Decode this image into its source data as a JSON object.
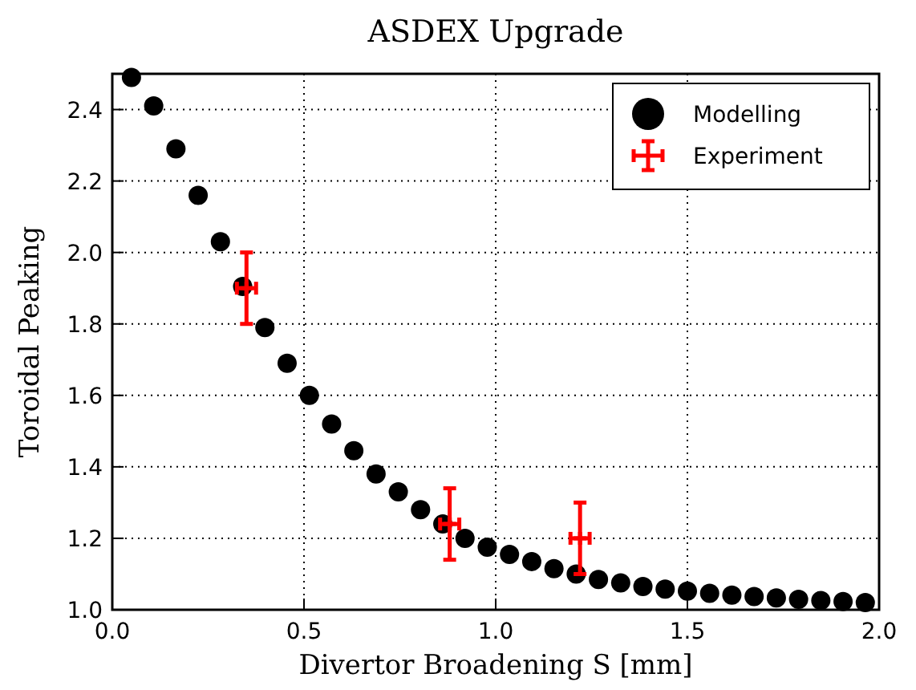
{
  "chart_data": {
    "type": "scatter",
    "title": "ASDEX Upgrade",
    "xlabel": "Divertor Broadening S [mm]",
    "ylabel": "Toroidal Peaking",
    "xlim": [
      0,
      2
    ],
    "ylim": [
      1,
      2.5
    ],
    "xticks": [
      {
        "value": 0,
        "label": "0.0"
      },
      0.5,
      {
        "value": 1,
        "label": "1.0"
      },
      1.5,
      {
        "value": 2,
        "label": "2.0"
      }
    ],
    "yticks": [
      {
        "value": 1,
        "label": "1.0"
      },
      1.2,
      1.4,
      1.6,
      1.8,
      {
        "value": 2,
        "label": "2.0"
      },
      2.2,
      2.4
    ],
    "grid": true,
    "legend": "top right",
    "series": [
      {
        "name": "Modelling",
        "color": "#000000",
        "marker": "circle",
        "x": [
          0.05,
          0.108,
          0.166,
          0.224,
          0.282,
          0.34,
          0.398,
          0.456,
          0.514,
          0.572,
          0.63,
          0.688,
          0.746,
          0.804,
          0.862,
          0.92,
          0.978,
          1.036,
          1.094,
          1.152,
          1.21,
          1.268,
          1.326,
          1.384,
          1.442,
          1.5,
          1.558,
          1.616,
          1.674,
          1.732,
          1.79,
          1.848,
          1.906,
          1.964
        ],
        "values": [
          2.49,
          2.41,
          2.29,
          2.16,
          2.03,
          1.905,
          1.79,
          1.69,
          1.6,
          1.52,
          1.445,
          1.38,
          1.33,
          1.28,
          1.24,
          1.2,
          1.175,
          1.155,
          1.135,
          1.115,
          1.1,
          1.085,
          1.075,
          1.065,
          1.058,
          1.052,
          1.046,
          1.041,
          1.037,
          1.033,
          1.029,
          1.026,
          1.023,
          1.02
        ]
      },
      {
        "name": "Experiment",
        "color": "#ff0000",
        "marker": "cross",
        "x": [
          0.35,
          0.88,
          1.22
        ],
        "values": [
          1.9,
          1.24,
          1.2
        ],
        "errors": [
          0.1,
          0.1,
          0.1
        ],
        "xerrors": [
          0.025,
          0.025,
          0.025
        ]
      }
    ]
  }
}
